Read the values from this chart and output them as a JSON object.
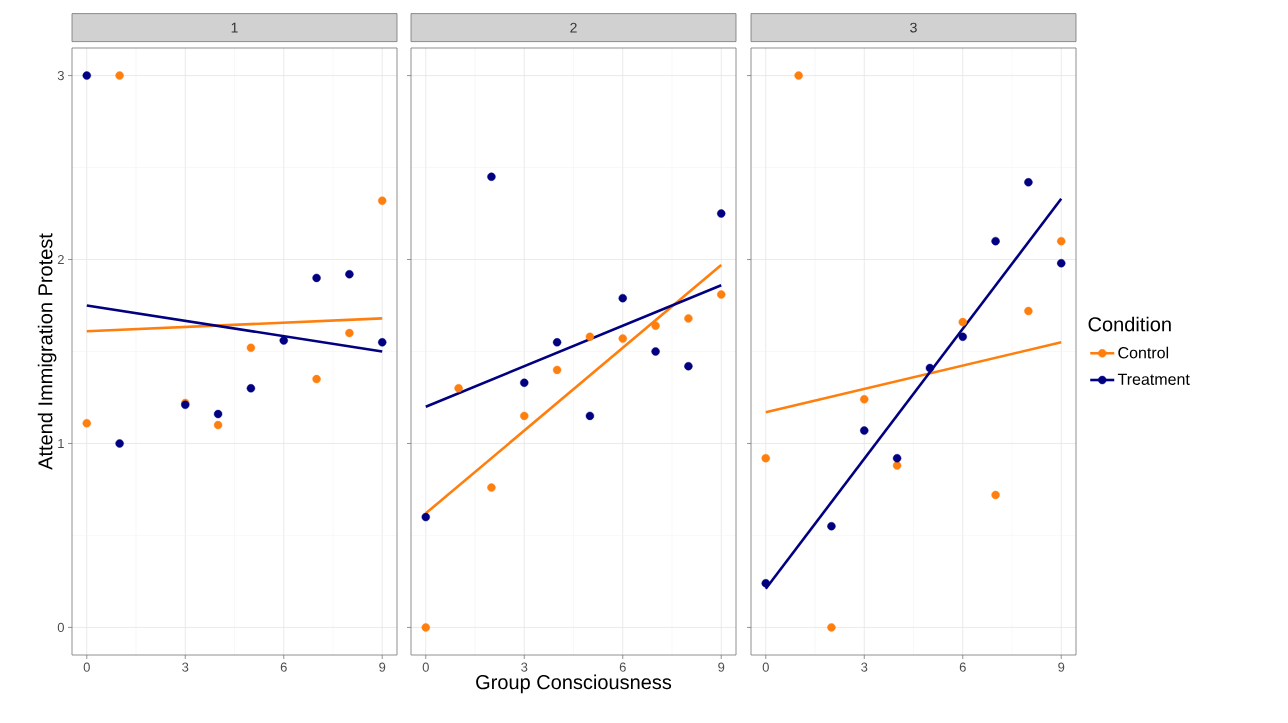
{
  "chart_data": [
    {
      "type": "scatter",
      "title": "1",
      "ylabel": "Attend Immigration Protest",
      "xlim": [
        -0.45,
        9.45
      ],
      "ylim": [
        -0.15,
        3.15
      ],
      "xticks": [
        0,
        3,
        6,
        9
      ],
      "yticks": [
        0,
        1,
        2,
        3
      ],
      "grid": true,
      "legend": false,
      "marker": "circle",
      "series": [
        {
          "color": "#ff7f0e",
          "x": [
            0,
            1,
            3,
            4,
            5,
            7,
            8,
            9
          ],
          "values": [
            1.11,
            3,
            1.22,
            1.1,
            1.52,
            1.35,
            1.6,
            2.32
          ]
        },
        {
          "color": "#000080",
          "x": [
            0,
            1,
            3,
            4,
            5,
            6,
            7,
            8,
            9
          ],
          "values": [
            3,
            1,
            1.21,
            1.16,
            1.3,
            1.56,
            1.9,
            1.92,
            1.55
          ]
        },
        {
          "type": "line",
          "marker": "none",
          "color": "#ff7f0e",
          "x": [
            0,
            9
          ],
          "values": [
            1.61,
            1.68
          ]
        },
        {
          "type": "line",
          "marker": "none",
          "color": "#000080",
          "x": [
            0,
            9
          ],
          "values": [
            1.75,
            1.5
          ]
        }
      ]
    },
    {
      "type": "scatter",
      "title": "2",
      "xlabel": "Group Consciousness",
      "xlim": [
        -0.45,
        9.45
      ],
      "ylim": [
        -0.15,
        3.15
      ],
      "xticks": [
        0,
        3,
        6,
        9
      ],
      "yticks": [
        0,
        1,
        2,
        3
      ],
      "tick_labels": "x",
      "grid": true,
      "legend": false,
      "marker": "circle",
      "series": [
        {
          "color": "#ff7f0e",
          "x": [
            0,
            1,
            2,
            3,
            4,
            5,
            6,
            7,
            8,
            9
          ],
          "values": [
            0,
            1.3,
            0.76,
            1.15,
            1.4,
            1.58,
            1.57,
            1.64,
            1.68,
            1.81
          ]
        },
        {
          "color": "#000080",
          "x": [
            0,
            2,
            3,
            4,
            5,
            6,
            7,
            8,
            9
          ],
          "values": [
            0.6,
            2.45,
            1.33,
            1.55,
            1.15,
            1.79,
            1.5,
            1.42,
            2.25
          ]
        },
        {
          "type": "line",
          "marker": "none",
          "color": "#ff7f0e",
          "x": [
            0,
            9
          ],
          "values": [
            0.62,
            1.97
          ]
        },
        {
          "type": "line",
          "marker": "none",
          "color": "#000080",
          "x": [
            0,
            9
          ],
          "values": [
            1.2,
            1.86
          ]
        }
      ]
    },
    {
      "type": "scatter",
      "title": "3",
      "legend_title": "Condition",
      "xlim": [
        -0.45,
        9.45
      ],
      "ylim": [
        -0.15,
        3.15
      ],
      "xticks": [
        0,
        3,
        6,
        9
      ],
      "yticks": [
        0,
        1,
        2,
        3
      ],
      "tick_labels": "x",
      "grid": true,
      "legend": "right",
      "marker": "circle",
      "series": [
        {
          "name": "Control",
          "color": "#ff7f0e",
          "x": [
            0,
            1,
            2,
            3,
            4,
            6,
            7,
            8,
            9
          ],
          "values": [
            0.92,
            3,
            0,
            1.24,
            0.88,
            1.66,
            0.72,
            1.72,
            2.1
          ]
        },
        {
          "name": "Treatment",
          "color": "#000080",
          "x": [
            0,
            2,
            3,
            4,
            5,
            6,
            7,
            8,
            9
          ],
          "values": [
            0.24,
            0.55,
            1.07,
            0.92,
            1.41,
            1.58,
            2.1,
            2.42,
            1.98
          ]
        },
        {
          "type": "line",
          "marker": "none",
          "color": "#ff7f0e",
          "x": [
            0,
            9
          ],
          "values": [
            1.17,
            1.55
          ]
        },
        {
          "type": "line",
          "marker": "none",
          "color": "#000080",
          "x": [
            0,
            9
          ],
          "values": [
            0.21,
            2.33
          ]
        }
      ]
    }
  ]
}
